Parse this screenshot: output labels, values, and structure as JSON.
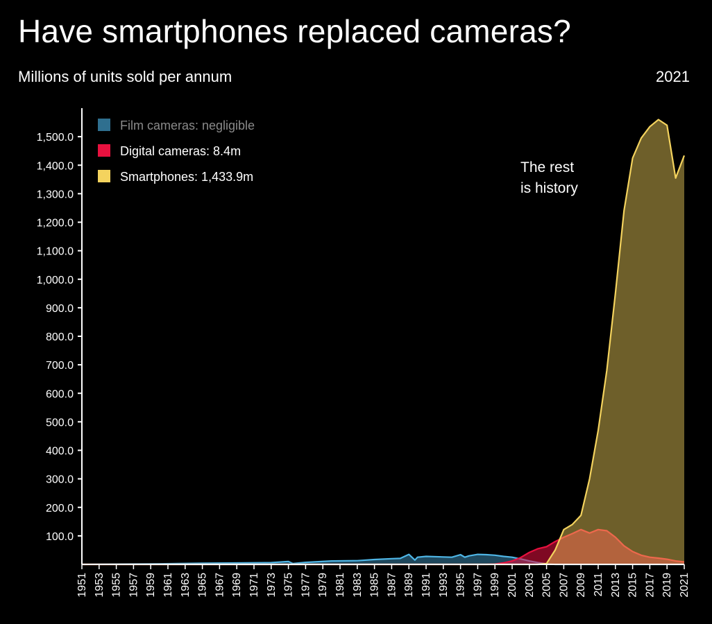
{
  "header": {
    "title": "Have smartphones replaced cameras?",
    "subtitle": "Millions of units sold per annum",
    "year": "2021"
  },
  "annotation": [
    "The rest",
    "is history"
  ],
  "legend": [
    {
      "label": "Film cameras: negligible",
      "color": "#2f6f8f",
      "text_color": "#8a8a8a"
    },
    {
      "label": "Digital cameras: 8.4m",
      "color": "#e8113f",
      "text_color": "#ffffff"
    },
    {
      "label": "Smartphones: 1,433.9m",
      "color": "#f4d35e",
      "text_color": "#ffffff"
    }
  ],
  "chart_data": {
    "type": "area",
    "title": "Have smartphones replaced cameras?",
    "ylabel": "Millions of units sold per annum",
    "ylim": [
      0,
      1600
    ],
    "xlim": [
      1951,
      2021
    ],
    "yticks": [
      100,
      200,
      300,
      400,
      500,
      600,
      700,
      800,
      900,
      1000,
      1100,
      1200,
      1300,
      1400,
      1500
    ],
    "ytick_labels": [
      "100.0",
      "200.0",
      "300.0",
      "400.0",
      "500.0",
      "600.0",
      "700.0",
      "800.0",
      "900.0",
      "1,000.0",
      "1,100.0",
      "1,200.0",
      "1,300.0",
      "1,400.0",
      "1,500.0"
    ],
    "xticks": [
      "1951",
      "1953",
      "1955",
      "1957",
      "1959",
      "1961",
      "1963",
      "1965",
      "1967",
      "1969",
      "1971",
      "1973",
      "1975",
      "1977",
      "1979",
      "1981",
      "1983",
      "1985",
      "1987",
      "1989",
      "1991",
      "1993",
      "1995",
      "1997",
      "1999",
      "2001",
      "2003",
      "2005",
      "2007",
      "2009",
      "2011",
      "2013",
      "2015",
      "2017",
      "2019",
      "2021"
    ],
    "series": [
      {
        "name": "Film cameras",
        "color": "#2f6f8f",
        "line": "#4fb6e6",
        "points": [
          [
            1951,
            0
          ],
          [
            1955,
            1
          ],
          [
            1960,
            2
          ],
          [
            1965,
            4
          ],
          [
            1970,
            5
          ],
          [
            1973,
            6
          ],
          [
            1975,
            10
          ],
          [
            1975.5,
            3
          ],
          [
            1977,
            7
          ],
          [
            1980,
            12
          ],
          [
            1983,
            13
          ],
          [
            1985,
            17
          ],
          [
            1987,
            20
          ],
          [
            1988,
            21
          ],
          [
            1989,
            35
          ],
          [
            1989.7,
            15
          ],
          [
            1990,
            25
          ],
          [
            1991,
            28
          ],
          [
            1993,
            26
          ],
          [
            1994,
            25
          ],
          [
            1995,
            34
          ],
          [
            1995.5,
            25
          ],
          [
            1996,
            30
          ],
          [
            1997,
            35
          ],
          [
            1998,
            34
          ],
          [
            1999,
            32
          ],
          [
            2000,
            28
          ],
          [
            2001,
            25
          ],
          [
            2002,
            19
          ],
          [
            2003,
            12
          ],
          [
            2004,
            6
          ],
          [
            2005,
            2
          ],
          [
            2006,
            0
          ],
          [
            2021,
            0
          ]
        ]
      },
      {
        "name": "Digital cameras",
        "color": "#e8113f",
        "line": "#e8113f",
        "points": [
          [
            1951,
            0
          ],
          [
            1998,
            0
          ],
          [
            1999,
            1
          ],
          [
            2000,
            5
          ],
          [
            2001,
            12
          ],
          [
            2002,
            24
          ],
          [
            2003,
            42
          ],
          [
            2004,
            55
          ],
          [
            2005,
            62
          ],
          [
            2006,
            80
          ],
          [
            2007,
            95
          ],
          [
            2008,
            108
          ],
          [
            2009,
            122
          ],
          [
            2010,
            110
          ],
          [
            2011,
            122
          ],
          [
            2012,
            118
          ],
          [
            2013,
            95
          ],
          [
            2014,
            65
          ],
          [
            2015,
            45
          ],
          [
            2016,
            32
          ],
          [
            2017,
            25
          ],
          [
            2018,
            22
          ],
          [
            2019,
            18
          ],
          [
            2020,
            12
          ],
          [
            2021,
            8.4
          ]
        ]
      },
      {
        "name": "Smartphones",
        "color": "#f4d35e",
        "line": "#f4d35e",
        "points": [
          [
            1951,
            0
          ],
          [
            2004,
            0
          ],
          [
            2005,
            3
          ],
          [
            2006,
            50
          ],
          [
            2007,
            122
          ],
          [
            2008,
            140
          ],
          [
            2009,
            172
          ],
          [
            2010,
            300
          ],
          [
            2011,
            470
          ],
          [
            2012,
            680
          ],
          [
            2013,
            950
          ],
          [
            2014,
            1240
          ],
          [
            2015,
            1425
          ],
          [
            2016,
            1495
          ],
          [
            2017,
            1535
          ],
          [
            2018,
            1560
          ],
          [
            2019,
            1540
          ],
          [
            2020,
            1355
          ],
          [
            2021,
            1433.9
          ]
        ]
      }
    ]
  }
}
